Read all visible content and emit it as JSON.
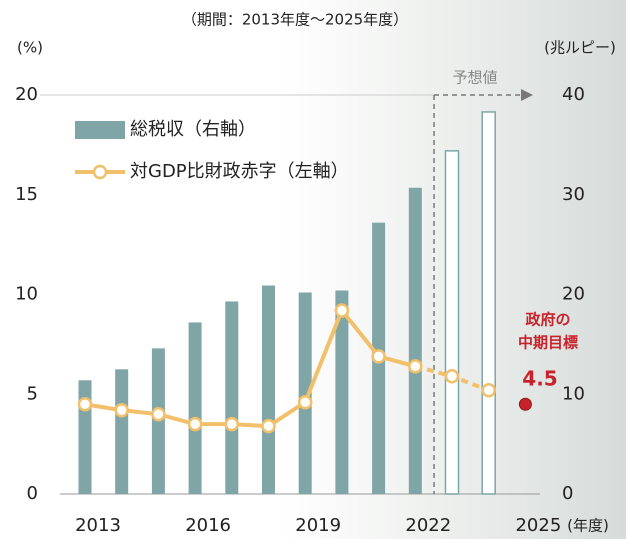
{
  "chart_data": {
    "type": "bar-line",
    "subtitle": "（期間：2013年度～2025年度）",
    "categories": [
      "2013",
      null,
      null,
      "2016",
      null,
      null,
      "2019",
      null,
      null,
      "2022",
      null,
      null,
      "2025"
    ],
    "x_unit": "(年度)",
    "y_label": "(%)",
    "y2_label": "(兆ルピー)",
    "ylim": [
      0,
      20
    ],
    "yticks": [
      0,
      5,
      10,
      15,
      20
    ],
    "y2lim": [
      0,
      40
    ],
    "y2ticks": [
      0,
      10,
      20,
      30,
      40
    ],
    "series": [
      {
        "name": "総税収（右軸）",
        "type": "bar",
        "axis": "y2",
        "color": "#7fa5a7",
        "values": [
          11.4,
          12.5,
          14.6,
          17.2,
          19.3,
          20.9,
          20.2,
          20.4,
          27.2,
          30.7,
          34.4,
          38.3,
          null
        ]
      },
      {
        "name": "対GDP比財政赤字（左軸）",
        "type": "line",
        "color": "#f2c06b",
        "values": [
          4.5,
          4.2,
          4.0,
          3.5,
          3.5,
          3.4,
          4.6,
          9.2,
          6.9,
          6.4,
          5.9,
          5.2,
          null
        ]
      }
    ],
    "forecast": {
      "label": "予想値",
      "start_index": 10
    },
    "target": {
      "label": [
        "政府の",
        "中期目標"
      ],
      "category": "2025",
      "value": 4.5,
      "color": "#c8232c"
    }
  }
}
